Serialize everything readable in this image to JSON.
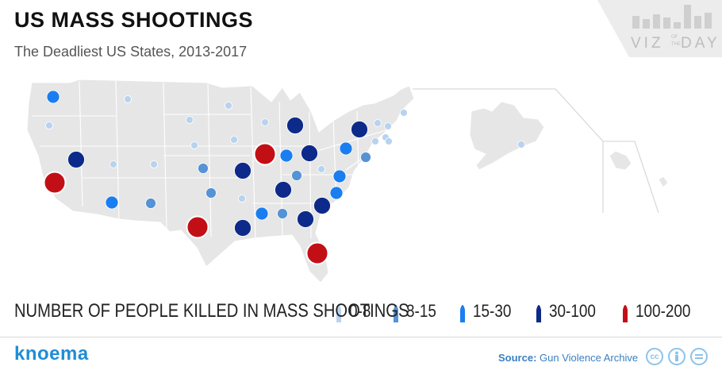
{
  "header": {
    "title": "US MASS SHOOTINGS",
    "subtitle": "The Deadliest US States, 2013-2017"
  },
  "badge": {
    "line1": "VIZ",
    "of": "OF",
    "the": "THE",
    "line2": "DAY"
  },
  "legend": {
    "title": "NUMBER OF PEOPLE KILLED IN MASS SHOOTINGS",
    "items": [
      {
        "label": "0-8",
        "color": "#b8d3ee"
      },
      {
        "label": "8-15",
        "color": "#5593d6"
      },
      {
        "label": "15-30",
        "color": "#1a7ef0"
      },
      {
        "label": "30-100",
        "color": "#0d2a8a"
      },
      {
        "label": "100-200",
        "color": "#c20f16"
      }
    ]
  },
  "footer": {
    "logo": "knoema",
    "source_label": "Source:",
    "source_value": "Gun Violence Archive",
    "license_icons": [
      "cc-icon",
      "attribution-icon",
      "no-derivatives-icon"
    ],
    "cc_text": "cc"
  },
  "map_data": {
    "land_color": "#e6e6e6",
    "border_color": "#ffffff",
    "category_colors": {
      "0-8": "#b8d3ee",
      "8-15": "#5593d6",
      "15-30": "#1a7ef0",
      "30-100": "#0d2a8a",
      "100-200": "#c20f16"
    },
    "states": [
      {
        "state": "Washington",
        "category": "15-30"
      },
      {
        "state": "Oregon",
        "category": "0-8"
      },
      {
        "state": "California",
        "category": "100-200"
      },
      {
        "state": "Nevada",
        "category": "30-100"
      },
      {
        "state": "Idaho",
        "category": "0-8"
      },
      {
        "state": "Montana",
        "category": "0-8"
      },
      {
        "state": "Wyoming",
        "category": "0-8"
      },
      {
        "state": "Utah",
        "category": "0-8"
      },
      {
        "state": "Colorado",
        "category": "0-8"
      },
      {
        "state": "Arizona",
        "category": "15-30"
      },
      {
        "state": "New Mexico",
        "category": "8-15"
      },
      {
        "state": "North Dakota",
        "category": "0-8"
      },
      {
        "state": "South Dakota",
        "category": "0-8"
      },
      {
        "state": "Nebraska",
        "category": "0-8"
      },
      {
        "state": "Kansas",
        "category": "8-15"
      },
      {
        "state": "Oklahoma",
        "category": "8-15"
      },
      {
        "state": "Texas",
        "category": "100-200"
      },
      {
        "state": "Minnesota",
        "category": "0-8"
      },
      {
        "state": "Iowa",
        "category": "0-8"
      },
      {
        "state": "Missouri",
        "category": "30-100"
      },
      {
        "state": "Arkansas",
        "category": "0-8"
      },
      {
        "state": "Louisiana",
        "category": "30-100"
      },
      {
        "state": "Wisconsin",
        "category": "0-8"
      },
      {
        "state": "Illinois",
        "category": "100-200"
      },
      {
        "state": "Michigan",
        "category": "30-100"
      },
      {
        "state": "Indiana",
        "category": "15-30"
      },
      {
        "state": "Ohio",
        "category": "30-100"
      },
      {
        "state": "Kentucky",
        "category": "8-15"
      },
      {
        "state": "Tennessee",
        "category": "30-100"
      },
      {
        "state": "Mississippi",
        "category": "15-30"
      },
      {
        "state": "Alabama",
        "category": "8-15"
      },
      {
        "state": "Georgia",
        "category": "30-100"
      },
      {
        "state": "Florida",
        "category": "100-200"
      },
      {
        "state": "South Carolina",
        "category": "30-100"
      },
      {
        "state": "North Carolina",
        "category": "15-30"
      },
      {
        "state": "Virginia",
        "category": "15-30"
      },
      {
        "state": "West Virginia",
        "category": "0-8"
      },
      {
        "state": "Pennsylvania",
        "category": "15-30"
      },
      {
        "state": "New York",
        "category": "30-100"
      },
      {
        "state": "Maryland",
        "category": "8-15"
      },
      {
        "state": "New Jersey",
        "category": "0-8"
      },
      {
        "state": "Connecticut",
        "category": "0-8"
      },
      {
        "state": "Massachusetts",
        "category": "0-8"
      },
      {
        "state": "Vermont",
        "category": "0-8"
      },
      {
        "state": "New Hampshire",
        "category": "0-8"
      },
      {
        "state": "Maine",
        "category": "0-8"
      },
      {
        "state": "Alaska",
        "category": "0-8"
      }
    ]
  }
}
